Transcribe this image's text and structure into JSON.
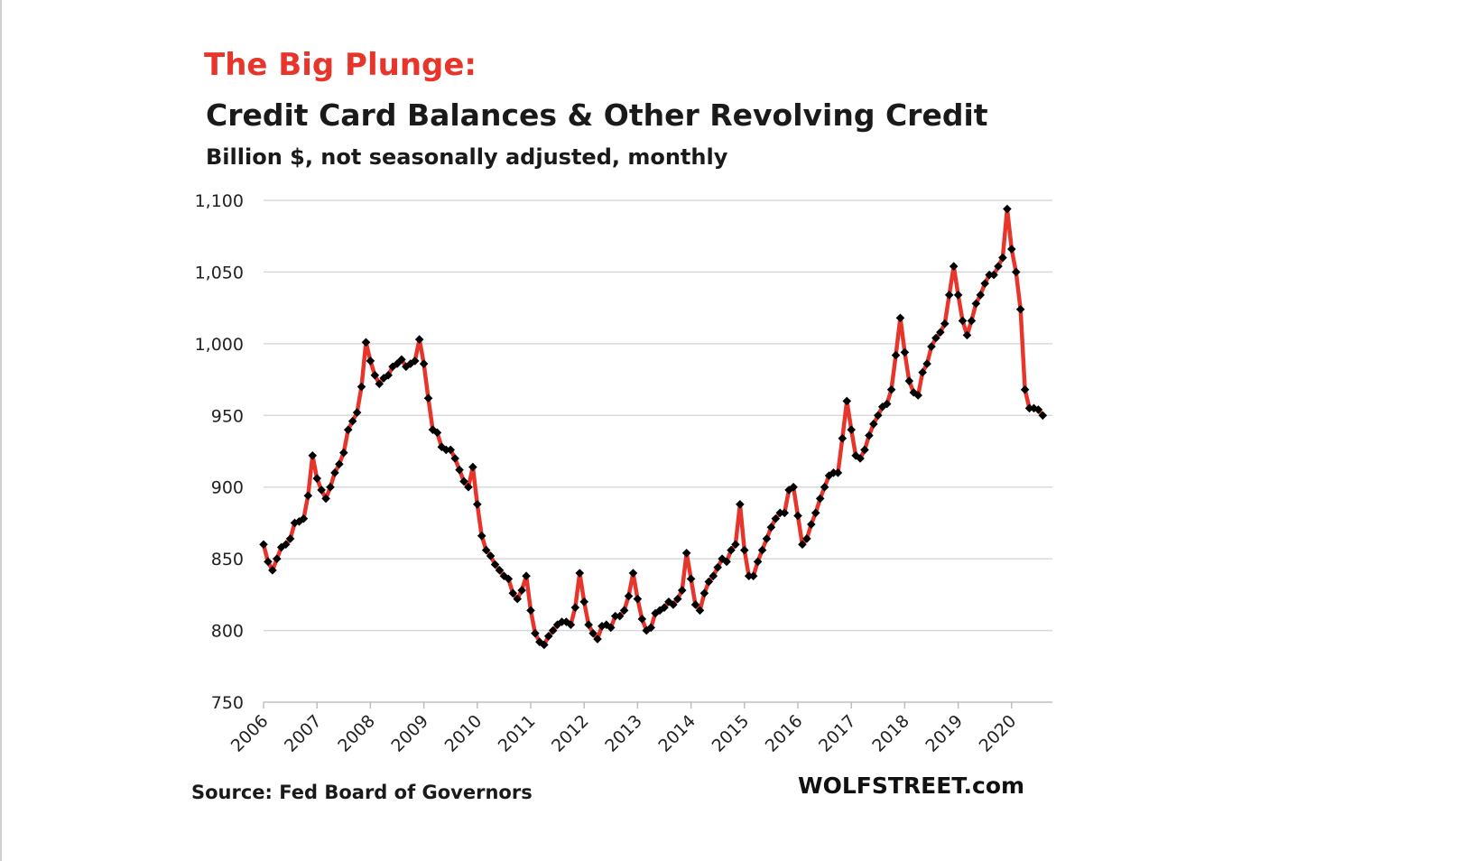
{
  "title": "The Big Plunge:",
  "subtitle": "Credit Card Balances & Other Revolving Credit",
  "unit_note": "Billion $, not seasonally adjusted, monthly",
  "source": "Source: Fed Board of Governors",
  "brand": "WOLFSTREET.com",
  "colors": {
    "line": "#e8352b",
    "marker": "#000000",
    "grid": "#d9d9d9",
    "title_accent": "#e8352b"
  },
  "chart_data": {
    "type": "line",
    "title": "Credit Card Balances & Other Revolving Credit",
    "ylabel": "Billion $",
    "ylim": [
      750,
      1100
    ],
    "yticks": [
      "750",
      "800",
      "850",
      "900",
      "950",
      "1,000",
      "1,050",
      "1,100"
    ],
    "xticks": [
      "2006",
      "2007",
      "2008",
      "2009",
      "2010",
      "2011",
      "2012",
      "2013",
      "2014",
      "2015",
      "2016",
      "2017",
      "2018",
      "2019",
      "2020"
    ],
    "xstart": 2006,
    "grid": true,
    "legend": "none",
    "series": [
      {
        "frequency": "monthly",
        "start": "2006-01",
        "values": [
          860,
          848,
          842,
          850,
          858,
          860,
          864,
          875,
          876,
          878,
          894,
          922,
          906,
          898,
          892,
          900,
          910,
          916,
          924,
          940,
          946,
          952,
          970,
          1001,
          988,
          978,
          972,
          976,
          978,
          984,
          986,
          989,
          984,
          986,
          988,
          1003,
          986,
          962,
          940,
          938,
          928,
          926,
          926,
          920,
          912,
          904,
          900,
          914,
          888,
          866,
          856,
          852,
          846,
          842,
          838,
          836,
          826,
          822,
          828,
          838,
          814,
          798,
          792,
          790,
          796,
          800,
          804,
          806,
          806,
          804,
          816,
          840,
          820,
          804,
          798,
          794,
          803,
          804,
          802,
          810,
          810,
          814,
          824,
          840,
          822,
          808,
          800,
          802,
          812,
          814,
          816,
          820,
          818,
          822,
          828,
          854,
          836,
          818,
          814,
          826,
          834,
          838,
          844,
          850,
          848,
          856,
          860,
          888,
          856,
          838,
          838,
          848,
          856,
          864,
          872,
          878,
          882,
          882,
          898,
          900,
          880,
          860,
          864,
          874,
          882,
          892,
          900,
          908,
          910,
          910,
          934,
          960,
          940,
          922,
          920,
          926,
          936,
          944,
          950,
          956,
          958,
          968,
          992,
          1018,
          994,
          974,
          966,
          964,
          980,
          986,
          998,
          1004,
          1008,
          1014,
          1034,
          1054,
          1034,
          1016,
          1006,
          1016,
          1028,
          1034,
          1042,
          1048,
          1048,
          1054,
          1060,
          1094,
          1066,
          1050,
          1024,
          968,
          955,
          955,
          954,
          950
        ]
      }
    ]
  }
}
